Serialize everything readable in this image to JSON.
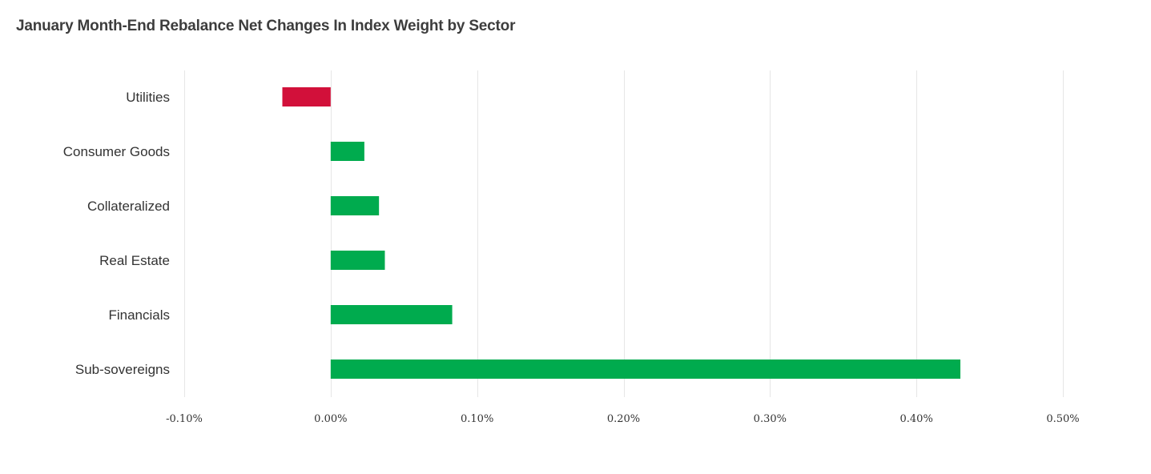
{
  "chart_data": {
    "type": "bar",
    "orientation": "horizontal",
    "title": "January Month-End Rebalance Net Changes In Index Weight by Sector",
    "categories": [
      "Utilities",
      "Consumer Goods",
      "Collateralized",
      "Real Estate",
      "Financials",
      "Sub-sovereigns"
    ],
    "values": [
      -0.033,
      0.023,
      0.033,
      0.037,
      0.083,
      0.43
    ],
    "xlim": [
      -0.1,
      0.5
    ],
    "x_ticks": [
      -0.1,
      0.0,
      0.1,
      0.2,
      0.3,
      0.4,
      0.5
    ],
    "x_tick_labels": [
      "-0.10%",
      "0.00%",
      "0.10%",
      "0.20%",
      "0.30%",
      "0.40%",
      "0.50%"
    ],
    "value_unit": "%",
    "grid": true,
    "legend": "none",
    "colors": {
      "positive": "#00ab4e",
      "negative": "#d2103a",
      "grid": "#e6e6e6",
      "text": "#333333"
    }
  }
}
